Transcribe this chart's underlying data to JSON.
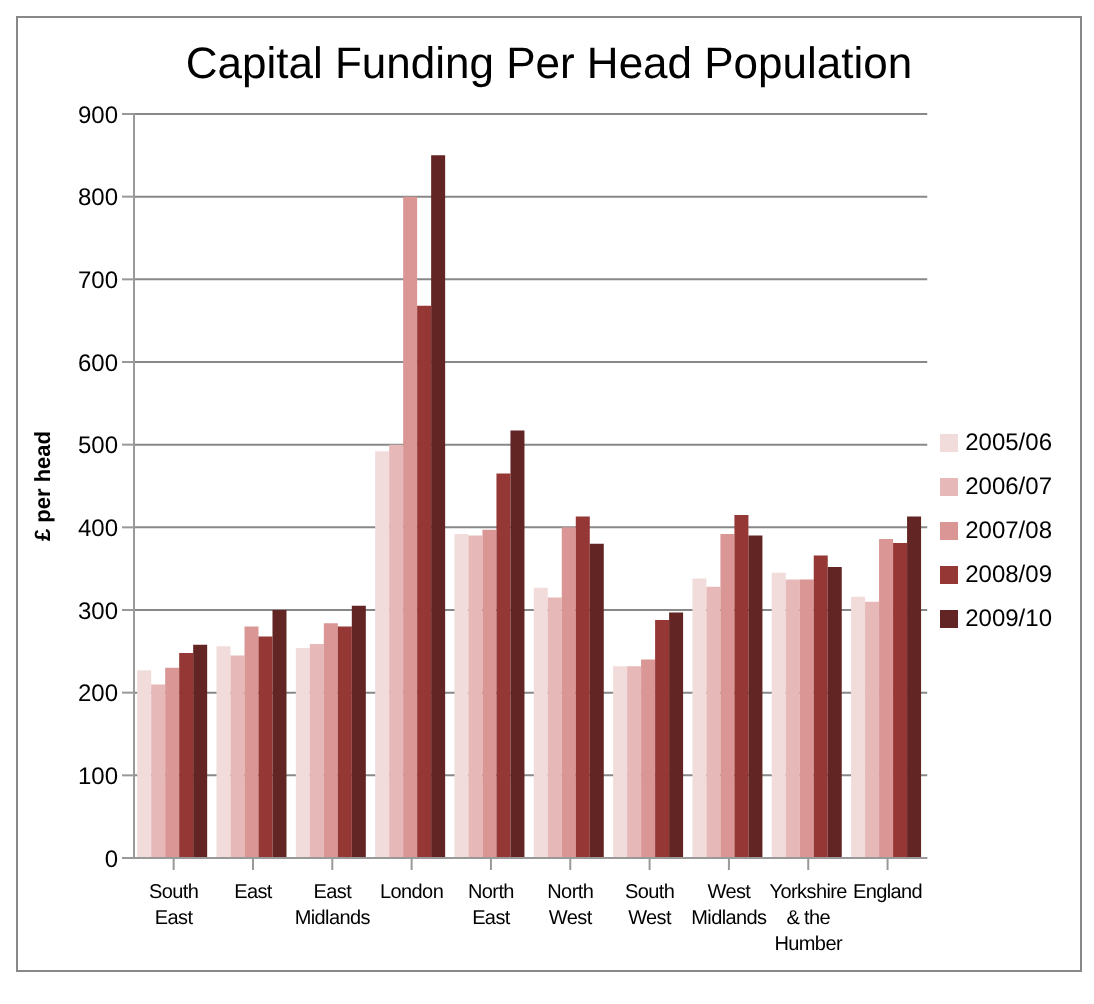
{
  "chart_data": {
    "type": "bar",
    "title": "Capital Funding Per Head Population",
    "ylabel": "£ per head",
    "categories": [
      "South East",
      "East",
      "East Midlands",
      "London",
      "North East",
      "North West",
      "South West",
      "West Midlands",
      "Yorkshire & the Humber",
      "England"
    ],
    "series": [
      {
        "name": "2005/06",
        "color": "#f2dcdb",
        "values": [
          227,
          256,
          254,
          492,
          392,
          327,
          232,
          338,
          345,
          316
        ]
      },
      {
        "name": "2006/07",
        "color": "#e6b9b8",
        "values": [
          210,
          245,
          259,
          500,
          390,
          315,
          232,
          328,
          337,
          310
        ]
      },
      {
        "name": "2007/08",
        "color": "#d99694",
        "values": [
          230,
          280,
          284,
          800,
          397,
          400,
          240,
          392,
          337,
          386
        ]
      },
      {
        "name": "2008/09",
        "color": "#953735",
        "values": [
          248,
          268,
          280,
          668,
          465,
          413,
          288,
          415,
          366,
          381
        ]
      },
      {
        "name": "2009/10",
        "color": "#632523",
        "values": [
          258,
          300,
          305,
          850,
          517,
          380,
          297,
          390,
          352,
          413
        ]
      }
    ],
    "ylim": [
      0,
      900
    ],
    "yticks": [
      0,
      100,
      200,
      300,
      400,
      500,
      600,
      700,
      800,
      900
    ],
    "grid": "y",
    "legend": "right"
  }
}
